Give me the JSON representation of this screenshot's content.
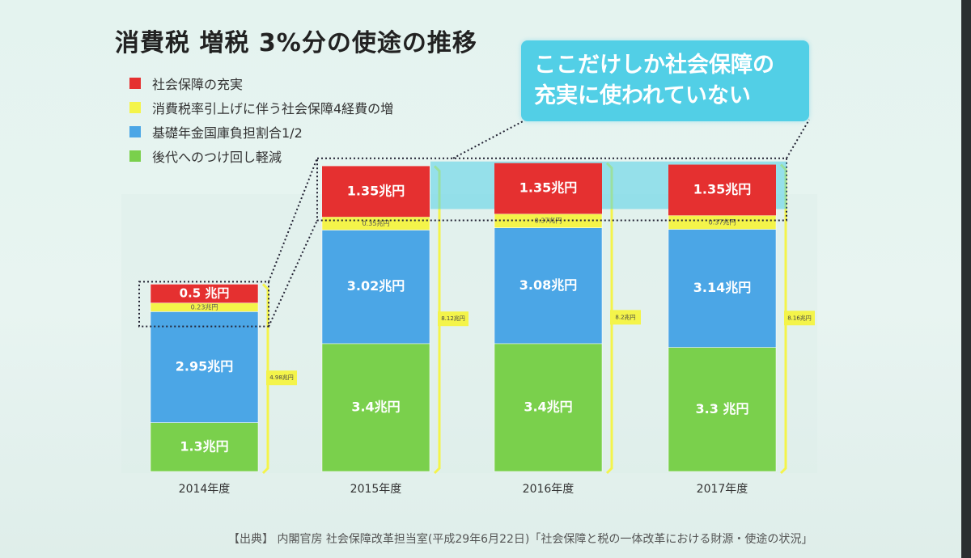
{
  "title": "消費税  増税 3%分の使途の推移",
  "callout": "ここだけしか社会保障の\n充実に使われていない",
  "source": "【出典】 内閣官房 社会保障改革担当室(平成29年6月22日)「社会保障と税の一体改革における財源・使途の状況」",
  "legend": [
    {
      "label": "社会保障の充実",
      "color": "#e53030"
    },
    {
      "label": "消費税率引上げに伴う社会保障4経費の増",
      "color": "#f4f44a"
    },
    {
      "label": "基礎年金国庫負担割合1/2",
      "color": "#4ba6e6"
    },
    {
      "label": "後代へのつけ回し軽減",
      "color": "#7ad04c"
    }
  ],
  "chart_data": {
    "type": "bar",
    "stacked": true,
    "categories": [
      "2014年度",
      "2015年度",
      "2016年度",
      "2017年度"
    ],
    "series": [
      {
        "name": "後代へのつけ回し軽減",
        "color": "#7ad04c",
        "values": [
          1.3,
          3.4,
          3.4,
          3.3
        ],
        "labels": [
          "1.3兆円",
          "3.4兆円",
          "3.4兆円",
          "3.3 兆円"
        ]
      },
      {
        "name": "基礎年金国庫負担割合1/2",
        "color": "#4ba6e6",
        "values": [
          2.95,
          3.02,
          3.08,
          3.14
        ],
        "labels": [
          "2.95兆円",
          "3.02兆円",
          "3.08兆円",
          "3.14兆円"
        ]
      },
      {
        "name": "消費税率引上げに伴う社会保障4経費の増",
        "color": "#f4f44a",
        "values": [
          0.23,
          0.35,
          0.37,
          0.37
        ],
        "labels": [
          "0.23兆円",
          "0.35兆円",
          "0.37兆円",
          "0.37兆円"
        ]
      },
      {
        "name": "社会保障の充実",
        "color": "#e53030",
        "values": [
          0.5,
          1.35,
          1.35,
          1.35
        ],
        "labels": [
          "0.5 兆円",
          "1.35兆円",
          "1.35兆円",
          "1.35兆円"
        ]
      }
    ],
    "totals": [
      4.98,
      8.12,
      8.2,
      8.16
    ],
    "total_labels": [
      "4.98兆円",
      "8.12兆円",
      "8.2兆円",
      "8.16兆円"
    ]
  }
}
